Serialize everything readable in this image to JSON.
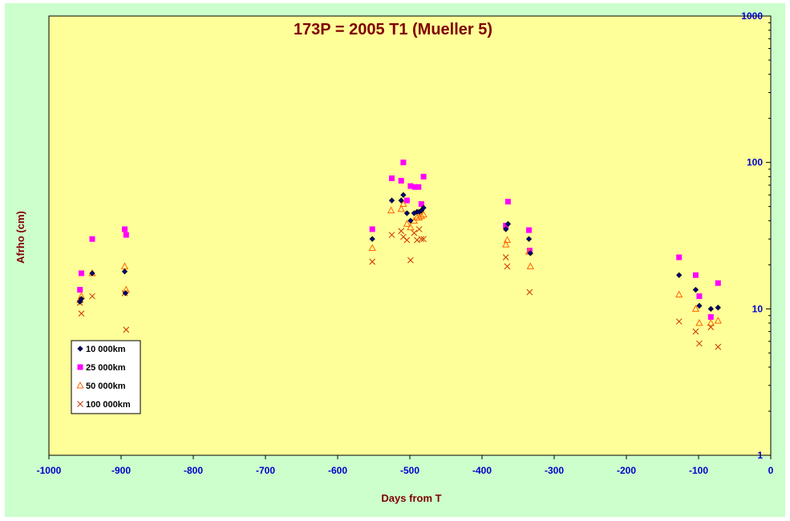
{
  "chart_data": {
    "type": "scatter",
    "title": "173P = 2005 T1 (Mueller 5)",
    "xlabel": "Days from T",
    "ylabel": "Afrho (cm)",
    "xlim": [
      -1000,
      0
    ],
    "ylim": [
      1,
      1000
    ],
    "y_scale": "log",
    "x_ticks": [
      -1000,
      -900,
      -800,
      -700,
      -600,
      -500,
      -400,
      -300,
      -200,
      -100,
      0
    ],
    "y_ticks": [
      1,
      10,
      100,
      1000
    ],
    "y_axis_position": "right",
    "grid": false,
    "legend_position": "bottom-left",
    "colors": {
      "plot_background": "#ffff99",
      "outer_background": "#ccffcc",
      "tick_text": "#0000cc",
      "title_text": "#800000"
    },
    "series": [
      {
        "name": "10 000km",
        "marker": "diamond",
        "color": "#000080",
        "points": [
          [
            -957,
            11.2
          ],
          [
            -955,
            11.7
          ],
          [
            -940,
            17.5
          ],
          [
            -895,
            18
          ],
          [
            -894,
            12.8
          ],
          [
            -552,
            30
          ],
          [
            -525,
            55
          ],
          [
            -512,
            55
          ],
          [
            -509,
            60
          ],
          [
            -504,
            45
          ],
          [
            -499,
            40
          ],
          [
            -494,
            45
          ],
          [
            -490,
            46
          ],
          [
            -487,
            46
          ],
          [
            -484,
            47
          ],
          [
            -481,
            49
          ],
          [
            -367,
            35
          ],
          [
            -364,
            38
          ],
          [
            -335,
            30
          ],
          [
            -333,
            24
          ],
          [
            -127,
            17
          ],
          [
            -104,
            13.5
          ],
          [
            -99,
            10.5
          ],
          [
            -83,
            10
          ],
          [
            -73,
            10.2
          ]
        ]
      },
      {
        "name": "25 000km",
        "marker": "square",
        "color": "#ff00ff",
        "points": [
          [
            -957,
            13.5
          ],
          [
            -955,
            17.5
          ],
          [
            -940,
            30
          ],
          [
            -895,
            35
          ],
          [
            -893,
            32
          ],
          [
            -552,
            35
          ],
          [
            -525,
            78
          ],
          [
            -512,
            75
          ],
          [
            -509,
            100
          ],
          [
            -504,
            55
          ],
          [
            -499,
            69
          ],
          [
            -493,
            68
          ],
          [
            -488,
            68
          ],
          [
            -484,
            52
          ],
          [
            -481,
            80
          ],
          [
            -367,
            37
          ],
          [
            -364,
            54
          ],
          [
            -335,
            34.5
          ],
          [
            -334,
            25
          ],
          [
            -127,
            22.5
          ],
          [
            -104,
            17
          ],
          [
            -99,
            12.2
          ],
          [
            -83,
            8.8
          ],
          [
            -73,
            15
          ]
        ]
      },
      {
        "name": "50 000km",
        "marker": "triangle",
        "color": "#ff6600",
        "points": [
          [
            -957,
            11.5
          ],
          [
            -955,
            12.2
          ],
          [
            -940,
            17.5
          ],
          [
            -895,
            19.5
          ],
          [
            -893,
            13.5
          ],
          [
            -552,
            26
          ],
          [
            -526,
            47
          ],
          [
            -512,
            48
          ],
          [
            -509,
            52
          ],
          [
            -504,
            38
          ],
          [
            -499,
            36
          ],
          [
            -494,
            40
          ],
          [
            -490,
            42
          ],
          [
            -487,
            42
          ],
          [
            -484,
            43
          ],
          [
            -481,
            44
          ],
          [
            -367,
            27.5
          ],
          [
            -365,
            29.5
          ],
          [
            -335,
            24.5
          ],
          [
            -333,
            19.5
          ],
          [
            -127,
            12.5
          ],
          [
            -104,
            10
          ],
          [
            -99,
            8
          ],
          [
            -83,
            8
          ],
          [
            -73,
            8.3
          ]
        ]
      },
      {
        "name": "100 000km",
        "marker": "x",
        "color": "#cc3300",
        "points": [
          [
            -957,
            11
          ],
          [
            -955,
            9.3
          ],
          [
            -940,
            12.2
          ],
          [
            -895,
            12.8
          ],
          [
            -893,
            7.2
          ],
          [
            -552,
            21
          ],
          [
            -525,
            32
          ],
          [
            -512,
            34
          ],
          [
            -509,
            31
          ],
          [
            -504,
            29.5
          ],
          [
            -499,
            21.5
          ],
          [
            -494,
            33
          ],
          [
            -490,
            29.5
          ],
          [
            -487,
            35
          ],
          [
            -484,
            30
          ],
          [
            -481,
            30
          ],
          [
            -367,
            22.5
          ],
          [
            -365,
            19.5
          ],
          [
            -334,
            13
          ],
          [
            -127,
            8.2
          ],
          [
            -104,
            7
          ],
          [
            -99,
            5.8
          ],
          [
            -83,
            7.5
          ],
          [
            -73,
            5.5
          ]
        ]
      }
    ]
  }
}
